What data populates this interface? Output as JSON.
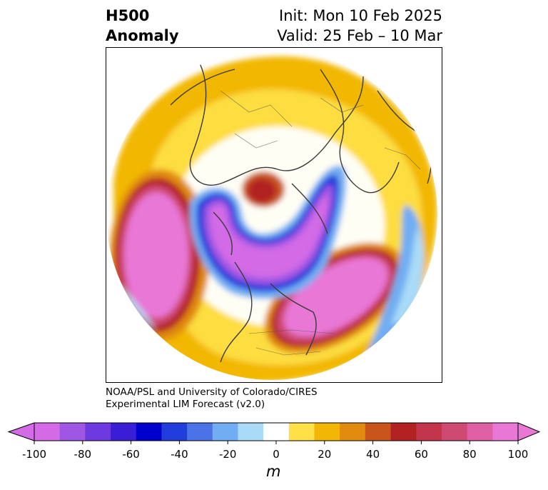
{
  "header": {
    "title_line1": "H500",
    "title_line2": "Anomaly",
    "init": "Init: Mon 10 Feb 2025",
    "valid": "Valid: 25 Feb – 10 Mar"
  },
  "credit": {
    "line1": "NOAA/PSL and University of Colorado/CIRES",
    "line2": "Experimental LIM Forecast (v2.0)"
  },
  "colorbar": {
    "unit": "m",
    "ticks": [
      "-100",
      "-80",
      "-60",
      "-40",
      "-20",
      "0",
      "20",
      "40",
      "60",
      "80",
      "100"
    ],
    "levels": [
      -100,
      -90,
      -80,
      -70,
      -60,
      -50,
      -40,
      -30,
      -20,
      -10,
      10,
      20,
      30,
      40,
      50,
      60,
      70,
      80,
      90,
      100
    ],
    "colors": [
      "#d36ae6",
      "#9f57e3",
      "#6c3ae0",
      "#3a1ed6",
      "#0000cd",
      "#213ddb",
      "#4c72e8",
      "#71adf2",
      "#a9dbf8",
      "#ffffff",
      "#fee148",
      "#f2b705",
      "#e08a0e",
      "#c9551a",
      "#b22222",
      "#c2354a",
      "#cf4a72",
      "#de60a4",
      "#e877d5"
    ],
    "under_color": "#d36ae6",
    "over_color": "#e877d5"
  }
}
